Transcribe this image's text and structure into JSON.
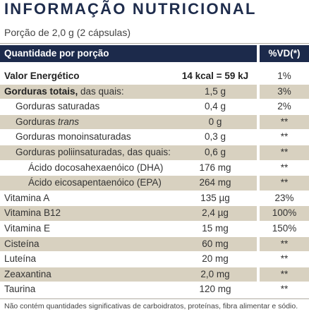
{
  "header": {
    "title": "INFORMAÇÃO NUTRICIONAL",
    "serving": "Porção de 2,0 g (2 cápsulas)"
  },
  "table": {
    "columns": [
      "Quantidade por porção",
      "%VD(*)"
    ],
    "rows": [
      {
        "level": 0,
        "label": [
          {
            "text": "Valor Energético",
            "style": "bold"
          }
        ],
        "amount": "14 kcal = 59 kJ",
        "amount_style": "bold",
        "dv": "1%"
      },
      {
        "level": 0,
        "label": [
          {
            "text": "Gorduras totais,",
            "style": "bold"
          },
          {
            "text": " das quais:"
          }
        ],
        "amount": "1,5 g",
        "dv": "3%"
      },
      {
        "level": 1,
        "label": [
          {
            "text": "Gorduras saturadas"
          }
        ],
        "amount": "0,4 g",
        "dv": "2%"
      },
      {
        "level": 1,
        "label": [
          {
            "text": "Gorduras "
          },
          {
            "text": "trans",
            "style": "italic"
          }
        ],
        "amount": "0 g",
        "dv": "**"
      },
      {
        "level": 1,
        "label": [
          {
            "text": "Gorduras monoinsaturadas"
          }
        ],
        "amount": "0,3 g",
        "dv": "**"
      },
      {
        "level": 1,
        "label": [
          {
            "text": "Gorduras poliinsaturadas, das quais:"
          }
        ],
        "amount": "0,6 g",
        "dv": "**"
      },
      {
        "level": 2,
        "label": [
          {
            "text": "Ácido docosahexaenóico (DHA)"
          }
        ],
        "amount": "176 mg",
        "dv": "**"
      },
      {
        "level": 2,
        "label": [
          {
            "text": "Ácido eicosapentaenóico (EPA)"
          }
        ],
        "amount": "264 mg",
        "dv": "**"
      },
      {
        "level": 0,
        "label": [
          {
            "text": "Vitamina A"
          }
        ],
        "amount": "135 µg",
        "dv": "23%"
      },
      {
        "level": 0,
        "label": [
          {
            "text": "Vitamina B12"
          }
        ],
        "amount": "2,4 µg",
        "dv": "100%"
      },
      {
        "level": 0,
        "label": [
          {
            "text": "Vitamina E"
          }
        ],
        "amount": "15 mg",
        "dv": "150%"
      },
      {
        "level": 0,
        "label": [
          {
            "text": "Cisteína"
          }
        ],
        "amount": "60 mg",
        "dv": "**"
      },
      {
        "level": 0,
        "label": [
          {
            "text": "Luteína"
          }
        ],
        "amount": "20 mg",
        "dv": "**"
      },
      {
        "level": 0,
        "label": [
          {
            "text": "Zeaxantina"
          }
        ],
        "amount": "2,0 mg",
        "dv": "**"
      },
      {
        "level": 0,
        "label": [
          {
            "text": "Taurina"
          }
        ],
        "amount": "120 mg",
        "dv": "**"
      }
    ]
  },
  "footnote": "Não contém quantidades significativas de carboidratos, proteínas, fibra alimentar e sódio."
}
